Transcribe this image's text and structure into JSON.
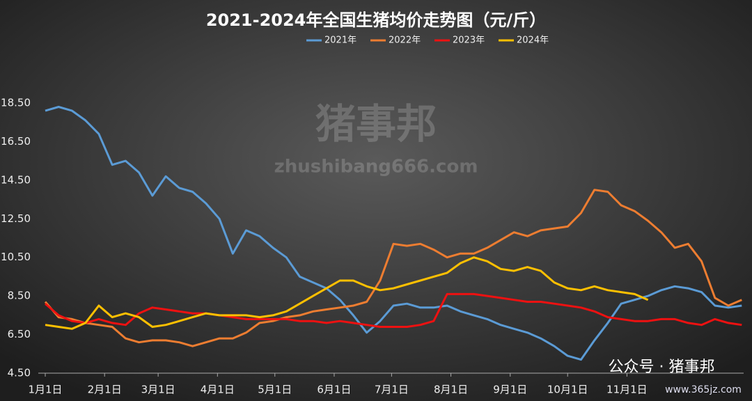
{
  "chart_data": {
    "type": "line",
    "title": "2021-2024年全国生猪均价走势图（元/斤）",
    "annotations": [
      "猪事邦",
      "zhushibang666.com",
      "公众号 · 猪事邦",
      "www.365jz.com"
    ],
    "x": [
      0,
      7,
      14,
      21,
      28,
      35,
      42,
      49,
      56,
      63,
      70,
      77,
      84,
      91,
      98,
      105,
      112,
      119,
      126,
      133,
      140,
      147,
      154,
      161,
      168,
      175,
      182,
      189,
      196,
      203,
      210,
      217,
      224,
      231,
      238,
      245,
      252,
      259,
      266,
      273,
      280,
      287,
      294,
      301,
      308,
      315,
      322,
      329,
      336,
      343,
      350,
      357,
      364
    ],
    "xlim": [
      0,
      365
    ],
    "xticks": [
      {
        "value": 0,
        "label": "1月1日"
      },
      {
        "value": 31,
        "label": "2月1日"
      },
      {
        "value": 59,
        "label": "3月1日"
      },
      {
        "value": 90,
        "label": "4月1日"
      },
      {
        "value": 120,
        "label": "5月1日"
      },
      {
        "value": 151,
        "label": "6月1日"
      },
      {
        "value": 181,
        "label": "7月1日"
      },
      {
        "value": 212,
        "label": "8月1日"
      },
      {
        "value": 243,
        "label": "9月1日"
      },
      {
        "value": 273,
        "label": "10月1日"
      },
      {
        "value": 304,
        "label": "11月1日"
      }
    ],
    "ylim": [
      4.5,
      18.5
    ],
    "yticks": [
      {
        "value": 4.5,
        "label": "4.50"
      },
      {
        "value": 6.5,
        "label": "6.50"
      },
      {
        "value": 8.5,
        "label": "8.50"
      },
      {
        "value": 10.5,
        "label": "10.50"
      },
      {
        "value": 12.5,
        "label": "12.50"
      },
      {
        "value": 14.5,
        "label": "14.50"
      },
      {
        "value": 16.5,
        "label": "16.50"
      },
      {
        "value": 18.5,
        "label": "18.50"
      }
    ],
    "grid": false,
    "series": [
      {
        "name": "2021年",
        "color": "#5b9bd5",
        "values": [
          18.1,
          18.3,
          18.1,
          17.6,
          16.9,
          15.3,
          15.5,
          14.9,
          13.7,
          14.7,
          14.1,
          13.9,
          13.3,
          12.5,
          10.7,
          11.9,
          11.6,
          11.0,
          10.5,
          9.5,
          9.2,
          8.9,
          8.3,
          7.5,
          6.6,
          7.2,
          8.0,
          8.1,
          7.9,
          7.9,
          8.0,
          7.7,
          7.5,
          7.3,
          7.0,
          6.8,
          6.6,
          6.3,
          5.9,
          5.4,
          5.2,
          6.2,
          7.1,
          8.1,
          8.3,
          8.5,
          8.8,
          9.0,
          8.9,
          8.7,
          8.0,
          7.9,
          8.0
        ]
      },
      {
        "name": "2022年",
        "color": "#ed7d31",
        "values": [
          8.2,
          7.4,
          7.3,
          7.1,
          7.0,
          6.9,
          6.3,
          6.1,
          6.2,
          6.2,
          6.1,
          5.9,
          6.1,
          6.3,
          6.3,
          6.6,
          7.1,
          7.2,
          7.4,
          7.5,
          7.7,
          7.8,
          7.9,
          8.0,
          8.2,
          9.3,
          11.2,
          11.1,
          11.2,
          10.9,
          10.5,
          10.7,
          10.7,
          11.0,
          11.4,
          11.8,
          11.6,
          11.9,
          12.0,
          12.1,
          12.8,
          14.0,
          13.9,
          13.2,
          12.9,
          12.4,
          11.8,
          11.0,
          11.2,
          10.3,
          8.4,
          8.0,
          8.3
        ]
      },
      {
        "name": "2023年",
        "color": "#ee1111",
        "values": [
          8.1,
          7.5,
          7.2,
          7.1,
          7.3,
          7.1,
          7.0,
          7.6,
          7.9,
          7.8,
          7.7,
          7.6,
          7.6,
          7.5,
          7.4,
          7.3,
          7.3,
          7.3,
          7.3,
          7.2,
          7.2,
          7.1,
          7.2,
          7.1,
          7.0,
          6.9,
          6.9,
          6.9,
          7.0,
          7.2,
          8.6,
          8.6,
          8.6,
          8.5,
          8.4,
          8.3,
          8.2,
          8.2,
          8.1,
          8.0,
          7.9,
          7.7,
          7.4,
          7.3,
          7.2,
          7.2,
          7.3,
          7.3,
          7.1,
          7.0,
          7.3,
          7.1,
          7.0
        ]
      },
      {
        "name": "2024年",
        "color": "#ffc000",
        "values": [
          7.0,
          6.9,
          6.8,
          7.1,
          8.0,
          7.4,
          7.6,
          7.4,
          6.9,
          7.0,
          7.2,
          7.4,
          7.6,
          7.5,
          7.5,
          7.5,
          7.4,
          7.5,
          7.7,
          8.1,
          8.5,
          8.9,
          9.3,
          9.3,
          9.0,
          8.8,
          8.9,
          9.1,
          9.3,
          9.5,
          9.7,
          10.2,
          10.5,
          10.3,
          9.9,
          9.8,
          10.0,
          9.8,
          9.2,
          8.9,
          8.8,
          9.0,
          8.8,
          8.7,
          8.6,
          8.3,
          null,
          null,
          null,
          null,
          null,
          null,
          null
        ]
      }
    ]
  }
}
